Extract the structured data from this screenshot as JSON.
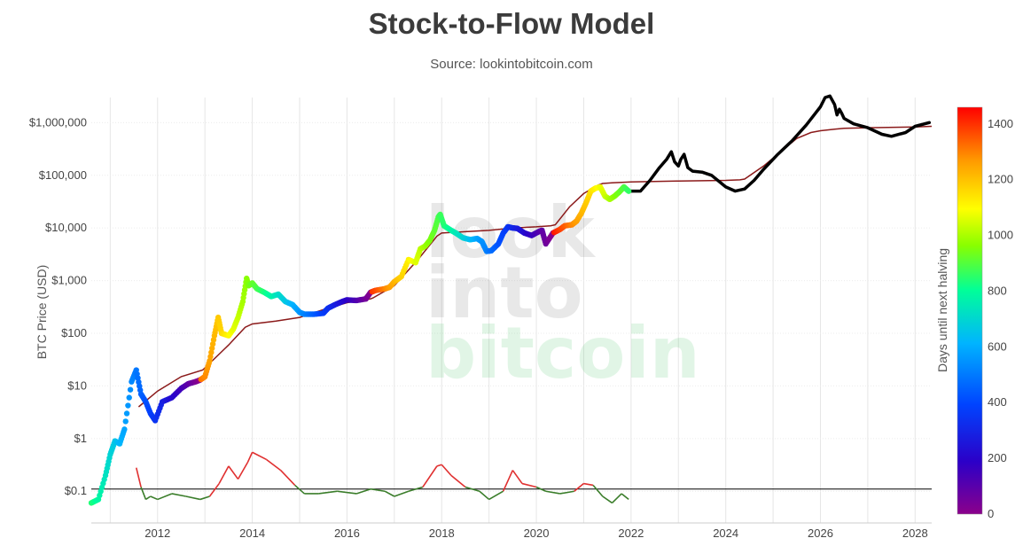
{
  "title": "Stock-to-Flow Model",
  "subtitle": "Source: lookintobitcoin.com",
  "watermark": [
    "look",
    "into",
    "bitcoin"
  ],
  "colors": {
    "model_line": "#8b1a1a",
    "projection": "#000000",
    "ratio_high": "#e03030",
    "ratio_low": "#3a7d2a",
    "reference_line": "#000000"
  },
  "chart_data": {
    "type": "scatter",
    "title": "Stock-to-Flow Model",
    "subtitle": "Source: lookintobitcoin.com",
    "ylabel": "BTC Price (USD)",
    "yscale": "log",
    "ylim": [
      0.025,
      3000000
    ],
    "xlim": [
      2010.6,
      2028.35
    ],
    "x_ticks": [
      "2012",
      "2014",
      "2016",
      "2018",
      "2020",
      "2022",
      "2024",
      "2026",
      "2028"
    ],
    "y_ticks": [
      "$0.1",
      "$1",
      "$10",
      "$100",
      "$1,000",
      "$10,000",
      "$100,000",
      "$1,000,000"
    ],
    "y_tick_values": [
      0.1,
      1,
      10,
      100,
      1000,
      10000,
      100000,
      1000000
    ],
    "grid": true,
    "colorbar": {
      "label": "Days until next halving",
      "range": [
        0,
        1460
      ],
      "ticks": [
        "0",
        "200",
        "400",
        "600",
        "800",
        "1000",
        "1200",
        "1400"
      ],
      "tick_values": [
        0,
        200,
        400,
        600,
        800,
        1000,
        1200,
        1400
      ]
    },
    "reference_line": {
      "y": 0.11
    },
    "series": [
      {
        "kind": "price",
        "x": [
          2010.6,
          2010.75,
          2010.9,
          2011.0,
          2011.1,
          2011.2,
          2011.3,
          2011.45,
          2011.55,
          2011.65,
          2011.75,
          2011.85,
          2011.95,
          2012.1,
          2012.3,
          2012.5,
          2012.65,
          2012.8,
          2012.9,
          2013.0,
          2013.1,
          2013.2,
          2013.28,
          2013.35,
          2013.5,
          2013.6,
          2013.7,
          2013.8,
          2013.88,
          2013.92,
          2014.0,
          2014.1,
          2014.25,
          2014.4,
          2014.55,
          2014.7,
          2014.85,
          2015.0,
          2015.1,
          2015.3,
          2015.5,
          2015.6,
          2015.75,
          2015.9,
          2016.0,
          2016.2,
          2016.4,
          2016.5,
          2016.6,
          2016.8,
          2016.9,
          2017.0,
          2017.15,
          2017.3,
          2017.45,
          2017.55,
          2017.65,
          2017.75,
          2017.85,
          2017.93,
          2017.97,
          2018.05,
          2018.2,
          2018.3,
          2018.45,
          2018.6,
          2018.75,
          2018.85,
          2018.95,
          2019.05,
          2019.2,
          2019.3,
          2019.4,
          2019.5,
          2019.6,
          2019.75,
          2019.9,
          2020.05,
          2020.12,
          2020.2,
          2020.35,
          2020.5,
          2020.6,
          2020.75,
          2020.85,
          2020.95,
          2021.05,
          2021.15,
          2021.25,
          2021.35,
          2021.45,
          2021.55,
          2021.65,
          2021.75,
          2021.85,
          2021.95
        ],
        "y": [
          0.06,
          0.07,
          0.2,
          0.5,
          0.9,
          0.8,
          1.5,
          12,
          20,
          7,
          5,
          3,
          2.2,
          5,
          6,
          9,
          11,
          12,
          13,
          15,
          30,
          90,
          200,
          100,
          90,
          120,
          200,
          400,
          1100,
          800,
          900,
          700,
          600,
          500,
          550,
          400,
          350,
          250,
          230,
          230,
          240,
          300,
          350,
          400,
          430,
          420,
          450,
          600,
          650,
          700,
          750,
          950,
          1200,
          2500,
          2200,
          4000,
          4500,
          5800,
          9000,
          16000,
          18000,
          11000,
          9000,
          8000,
          6500,
          6000,
          6300,
          5500,
          3600,
          3700,
          5000,
          8000,
          10500,
          10000,
          9800,
          8000,
          7200,
          8500,
          9000,
          5000,
          8000,
          9400,
          11000,
          11500,
          13500,
          19000,
          30000,
          50000,
          57000,
          60000,
          40000,
          35000,
          40000,
          48000,
          60000,
          50000
        ]
      },
      {
        "kind": "model",
        "x": [
          2011.6,
          2012.0,
          2012.5,
          2012.95,
          2013.0,
          2013.5,
          2013.85,
          2014.0,
          2014.5,
          2015.0,
          2015.5,
          2016.0,
          2016.5,
          2016.55,
          2017.0,
          2017.5,
          2017.9,
          2018.0,
          2018.5,
          2019.0,
          2019.5,
          2020.0,
          2020.3,
          2020.4,
          2020.7,
          2021.0,
          2021.3,
          2021.4,
          2021.6,
          2022.0,
          2023.0,
          2024.0,
          2024.3,
          2024.4,
          2024.8,
          2025.2,
          2025.5,
          2025.8,
          2026.0,
          2026.3,
          2026.5,
          2027.0,
          2028.0,
          2028.35
        ],
        "y": [
          4,
          8,
          15,
          20,
          22,
          60,
          130,
          150,
          170,
          200,
          280,
          380,
          450,
          470,
          800,
          2500,
          7000,
          8000,
          8500,
          9000,
          10000,
          10500,
          11000,
          11500,
          25000,
          45000,
          65000,
          70000,
          72000,
          75000,
          78000,
          80000,
          82000,
          85000,
          150000,
          300000,
          500000,
          650000,
          700000,
          750000,
          780000,
          800000,
          830000,
          850000
        ]
      },
      {
        "kind": "projection",
        "x": [
          2022.0,
          2022.2,
          2022.4,
          2022.6,
          2022.75,
          2022.85,
          2022.92,
          2023.0,
          2023.05,
          2023.12,
          2023.2,
          2023.3,
          2023.5,
          2023.7,
          2024.0,
          2024.2,
          2024.4,
          2024.6,
          2024.8,
          2025.1,
          2025.4,
          2025.7,
          2026.0,
          2026.1,
          2026.2,
          2026.3,
          2026.35,
          2026.4,
          2026.45,
          2026.5,
          2026.7,
          2027.0,
          2027.3,
          2027.5,
          2027.8,
          2028.0,
          2028.3
        ],
        "y": [
          50000,
          50000,
          80000,
          140000,
          200000,
          280000,
          180000,
          150000,
          200000,
          250000,
          140000,
          120000,
          115000,
          100000,
          60000,
          50000,
          55000,
          80000,
          130000,
          250000,
          450000,
          900000,
          2000000,
          3000000,
          3200000,
          2200000,
          1400000,
          1800000,
          1500000,
          1200000,
          950000,
          800000,
          600000,
          550000,
          650000,
          850000,
          1000000
        ]
      },
      {
        "kind": "ratio",
        "x": [
          2011.55,
          2011.65,
          2011.75,
          2011.85,
          2012.0,
          2012.3,
          2012.6,
          2012.9,
          2013.1,
          2013.3,
          2013.5,
          2013.7,
          2013.9,
          2014.0,
          2014.3,
          2014.6,
          2014.9,
          2015.1,
          2015.4,
          2015.8,
          2016.2,
          2016.5,
          2016.8,
          2017.0,
          2017.3,
          2017.6,
          2017.9,
          2018.0,
          2018.2,
          2018.5,
          2018.8,
          2019.0,
          2019.3,
          2019.5,
          2019.7,
          2020.0,
          2020.2,
          2020.5,
          2020.8,
          2021.0,
          2021.2,
          2021.4,
          2021.6,
          2021.8,
          2021.95
        ],
        "y": [
          0.28,
          0.12,
          0.07,
          0.08,
          0.07,
          0.09,
          0.08,
          0.07,
          0.08,
          0.14,
          0.3,
          0.17,
          0.35,
          0.55,
          0.4,
          0.25,
          0.13,
          0.09,
          0.09,
          0.1,
          0.09,
          0.11,
          0.1,
          0.08,
          0.1,
          0.12,
          0.3,
          0.32,
          0.2,
          0.12,
          0.1,
          0.07,
          0.1,
          0.25,
          0.14,
          0.12,
          0.1,
          0.09,
          0.1,
          0.14,
          0.13,
          0.08,
          0.06,
          0.09,
          0.07
        ]
      }
    ]
  }
}
